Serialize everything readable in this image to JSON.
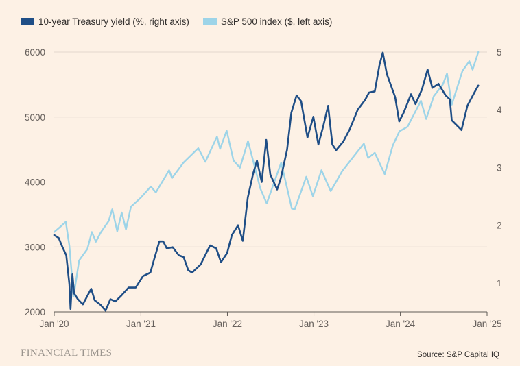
{
  "chart_data": {
    "type": "line",
    "legend_position": "top-left",
    "grid": true,
    "series": [
      {
        "name": "10-year Treasury yield (%, right axis)",
        "axis": "right",
        "color": "#1f4e86",
        "points": [
          [
            "2020-01-01",
            1.83
          ],
          [
            "2020-01-20",
            1.78
          ],
          [
            "2020-02-05",
            1.62
          ],
          [
            "2020-02-21",
            1.48
          ],
          [
            "2020-03-05",
            0.98
          ],
          [
            "2020-03-10",
            0.55
          ],
          [
            "2020-03-18",
            1.15
          ],
          [
            "2020-03-25",
            0.82
          ],
          [
            "2020-04-10",
            0.72
          ],
          [
            "2020-05-01",
            0.63
          ],
          [
            "2020-06-05",
            0.9
          ],
          [
            "2020-06-20",
            0.7
          ],
          [
            "2020-07-15",
            0.62
          ],
          [
            "2020-08-05",
            0.52
          ],
          [
            "2020-08-25",
            0.72
          ],
          [
            "2020-09-15",
            0.68
          ],
          [
            "2020-10-10",
            0.78
          ],
          [
            "2020-11-10",
            0.92
          ],
          [
            "2020-12-10",
            0.92
          ],
          [
            "2021-01-10",
            1.12
          ],
          [
            "2021-02-10",
            1.18
          ],
          [
            "2021-02-28",
            1.44
          ],
          [
            "2021-03-20",
            1.72
          ],
          [
            "2021-04-05",
            1.72
          ],
          [
            "2021-04-20",
            1.6
          ],
          [
            "2021-05-15",
            1.62
          ],
          [
            "2021-06-10",
            1.48
          ],
          [
            "2021-06-30",
            1.45
          ],
          [
            "2021-07-20",
            1.22
          ],
          [
            "2021-08-05",
            1.18
          ],
          [
            "2021-09-10",
            1.32
          ],
          [
            "2021-10-20",
            1.65
          ],
          [
            "2021-11-15",
            1.6
          ],
          [
            "2021-12-05",
            1.36
          ],
          [
            "2021-12-31",
            1.52
          ],
          [
            "2022-01-20",
            1.83
          ],
          [
            "2022-02-15",
            2.0
          ],
          [
            "2022-03-07",
            1.73
          ],
          [
            "2022-03-28",
            2.48
          ],
          [
            "2022-04-20",
            2.9
          ],
          [
            "2022-05-06",
            3.12
          ],
          [
            "2022-05-26",
            2.75
          ],
          [
            "2022-06-14",
            3.48
          ],
          [
            "2022-07-01",
            2.88
          ],
          [
            "2022-07-30",
            2.62
          ],
          [
            "2022-08-15",
            2.82
          ],
          [
            "2022-09-10",
            3.31
          ],
          [
            "2022-09-28",
            3.95
          ],
          [
            "2022-10-20",
            4.25
          ],
          [
            "2022-11-08",
            4.15
          ],
          [
            "2022-12-05",
            3.52
          ],
          [
            "2022-12-30",
            3.88
          ],
          [
            "2023-01-20",
            3.4
          ],
          [
            "2023-02-10",
            3.72
          ],
          [
            "2023-03-02",
            4.07
          ],
          [
            "2023-03-20",
            3.4
          ],
          [
            "2023-04-05",
            3.3
          ],
          [
            "2023-05-05",
            3.45
          ],
          [
            "2023-06-01",
            3.66
          ],
          [
            "2023-07-05",
            4.0
          ],
          [
            "2023-08-05",
            4.17
          ],
          [
            "2023-08-22",
            4.3
          ],
          [
            "2023-09-15",
            4.32
          ],
          [
            "2023-10-05",
            4.78
          ],
          [
            "2023-10-19",
            4.99
          ],
          [
            "2023-11-05",
            4.62
          ],
          [
            "2023-12-10",
            4.22
          ],
          [
            "2023-12-27",
            3.8
          ],
          [
            "2024-01-15",
            3.95
          ],
          [
            "2024-02-15",
            4.27
          ],
          [
            "2024-03-05",
            4.1
          ],
          [
            "2024-04-01",
            4.35
          ],
          [
            "2024-04-25",
            4.7
          ],
          [
            "2024-05-15",
            4.38
          ],
          [
            "2024-06-10",
            4.45
          ],
          [
            "2024-07-10",
            4.25
          ],
          [
            "2024-07-28",
            4.18
          ],
          [
            "2024-08-05",
            3.82
          ],
          [
            "2024-09-15",
            3.65
          ],
          [
            "2024-10-10",
            4.07
          ],
          [
            "2024-11-10",
            4.31
          ],
          [
            "2024-11-25",
            4.42
          ]
        ]
      },
      {
        "name": "S&P 500 index ($, left axis)",
        "axis": "left",
        "color": "#9dd4e8",
        "points": [
          [
            "2020-01-01",
            3230
          ],
          [
            "2020-01-24",
            3300
          ],
          [
            "2020-02-19",
            3386
          ],
          [
            "2020-03-05",
            3020
          ],
          [
            "2020-03-23",
            2237
          ],
          [
            "2020-04-15",
            2790
          ],
          [
            "2020-05-20",
            2970
          ],
          [
            "2020-06-08",
            3230
          ],
          [
            "2020-06-25",
            3080
          ],
          [
            "2020-07-15",
            3220
          ],
          [
            "2020-08-18",
            3400
          ],
          [
            "2020-09-02",
            3580
          ],
          [
            "2020-09-23",
            3240
          ],
          [
            "2020-10-12",
            3530
          ],
          [
            "2020-10-30",
            3270
          ],
          [
            "2020-11-20",
            3620
          ],
          [
            "2020-12-31",
            3756
          ],
          [
            "2021-02-12",
            3930
          ],
          [
            "2021-03-05",
            3840
          ],
          [
            "2021-04-30",
            4180
          ],
          [
            "2021-05-12",
            4060
          ],
          [
            "2021-06-30",
            4300
          ],
          [
            "2021-08-31",
            4520
          ],
          [
            "2021-09-30",
            4310
          ],
          [
            "2021-11-18",
            4700
          ],
          [
            "2021-12-01",
            4510
          ],
          [
            "2021-12-29",
            4790
          ],
          [
            "2022-01-27",
            4330
          ],
          [
            "2022-02-23",
            4220
          ],
          [
            "2022-03-29",
            4630
          ],
          [
            "2022-05-20",
            3900
          ],
          [
            "2022-06-16",
            3670
          ],
          [
            "2022-08-16",
            4300
          ],
          [
            "2022-09-30",
            3590
          ],
          [
            "2022-10-12",
            3580
          ],
          [
            "2022-11-30",
            4080
          ],
          [
            "2022-12-28",
            3780
          ],
          [
            "2023-02-02",
            4180
          ],
          [
            "2023-03-13",
            3860
          ],
          [
            "2023-05-01",
            4170
          ],
          [
            "2023-06-30",
            4450
          ],
          [
            "2023-07-31",
            4590
          ],
          [
            "2023-08-18",
            4370
          ],
          [
            "2023-09-15",
            4450
          ],
          [
            "2023-10-27",
            4120
          ],
          [
            "2023-11-30",
            4560
          ],
          [
            "2023-12-28",
            4780
          ],
          [
            "2024-01-31",
            4850
          ],
          [
            "2024-03-28",
            5250
          ],
          [
            "2024-04-19",
            4970
          ],
          [
            "2024-05-21",
            5320
          ],
          [
            "2024-06-28",
            5500
          ],
          [
            "2024-07-16",
            5670
          ],
          [
            "2024-08-05",
            5190
          ],
          [
            "2024-09-19",
            5710
          ],
          [
            "2024-10-18",
            5860
          ],
          [
            "2024-11-01",
            5730
          ],
          [
            "2024-11-25",
            6000
          ]
        ]
      }
    ],
    "x_axis": {
      "type": "date",
      "range": [
        "2020-01-01",
        "2025-01-01"
      ],
      "ticks": [
        {
          "date": "2020-01-01",
          "label": "Jan '20"
        },
        {
          "date": "2021-01-01",
          "label": "Jan '21"
        },
        {
          "date": "2022-01-01",
          "label": "Jan '22"
        },
        {
          "date": "2023-01-01",
          "label": "Jan '23"
        },
        {
          "date": "2024-01-01",
          "label": "Jan '24"
        },
        {
          "date": "2025-01-01",
          "label": "Jan '25"
        }
      ]
    },
    "left_axis": {
      "range": [
        2000,
        6000
      ],
      "ticks": [
        2000,
        3000,
        4000,
        5000,
        6000
      ]
    },
    "right_axis": {
      "range": [
        0.5,
        5.0
      ],
      "ticks": [
        1,
        2,
        3,
        4,
        5
      ]
    }
  },
  "colors": {
    "background": "#fdf1e5",
    "grid": "#e3d8cd",
    "tick_text": "#66605c"
  },
  "footer": {
    "brand": "FINANCIAL TIMES",
    "source": "Source: S&P Capital IQ"
  }
}
